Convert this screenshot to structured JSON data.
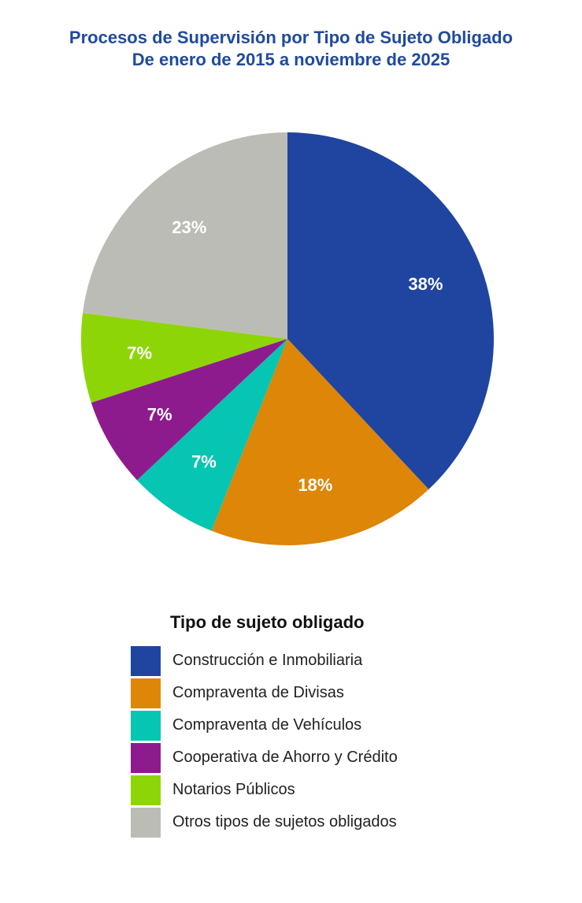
{
  "chart_data": {
    "type": "pie",
    "title": "Procesos de Supervisión por Tipo de Sujeto Obligado",
    "subtitle": "De enero de 2015 a noviembre de 2025",
    "categories": [
      "Construcción e Inmobiliaria",
      "Compraventa de Divisas",
      "Compraventa de Vehículos",
      "Cooperativa de Ahorro y Crédito",
      "Notarios Públicos",
      "Otros tipos de sujetos obligados"
    ],
    "values": [
      38,
      18,
      7,
      7,
      7,
      23
    ],
    "labels": [
      "38%",
      "18%",
      "7%",
      "7%",
      "7%",
      "23%"
    ],
    "colors": [
      "#1f45a0",
      "#dd8607",
      "#06c5b3",
      "#8e1b8e",
      "#8ed507",
      "#bcbcb6"
    ],
    "legend_title": "Tipo de sujeto obligado",
    "legend_position": "bottom"
  }
}
